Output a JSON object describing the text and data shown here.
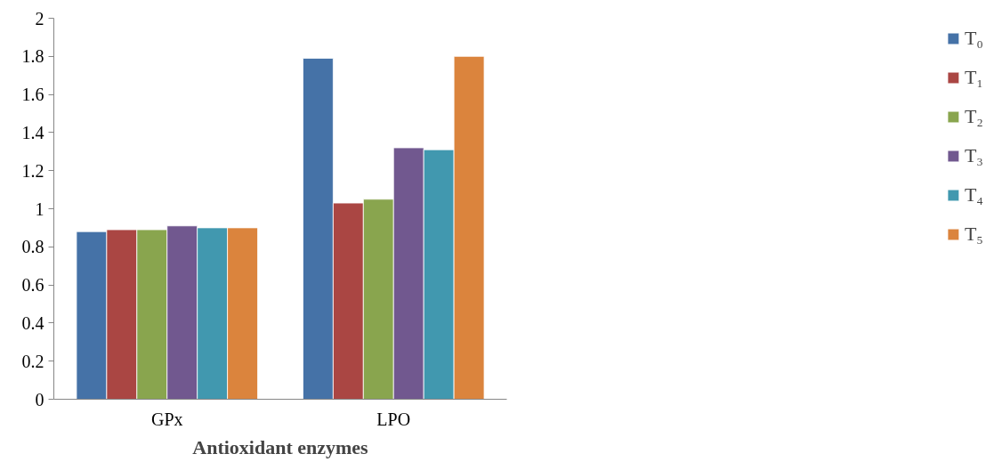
{
  "chart_data": {
    "type": "bar",
    "xlabel": "Antioxidant enzymes",
    "categories": [
      "GPx",
      "LPO"
    ],
    "series": [
      {
        "name": "T₀",
        "color": "#4572a7",
        "values": [
          0.88,
          1.79
        ]
      },
      {
        "name": "T₁",
        "color": "#aa4643",
        "values": [
          0.89,
          1.03
        ]
      },
      {
        "name": "T₂",
        "color": "#89a54e",
        "values": [
          0.89,
          1.05
        ]
      },
      {
        "name": "T₃",
        "color": "#71588f",
        "values": [
          0.91,
          1.32
        ]
      },
      {
        "name": "T₄",
        "color": "#4198af",
        "values": [
          0.9,
          1.31
        ]
      },
      {
        "name": "T₅",
        "color": "#db843d",
        "values": [
          0.9,
          1.8
        ]
      }
    ],
    "ylim": [
      0,
      2
    ],
    "yticks": [
      0,
      0.2,
      0.4,
      0.6,
      0.8,
      1,
      1.2,
      1.4,
      1.6,
      1.8,
      2
    ],
    "grid": false,
    "legend": "right"
  }
}
